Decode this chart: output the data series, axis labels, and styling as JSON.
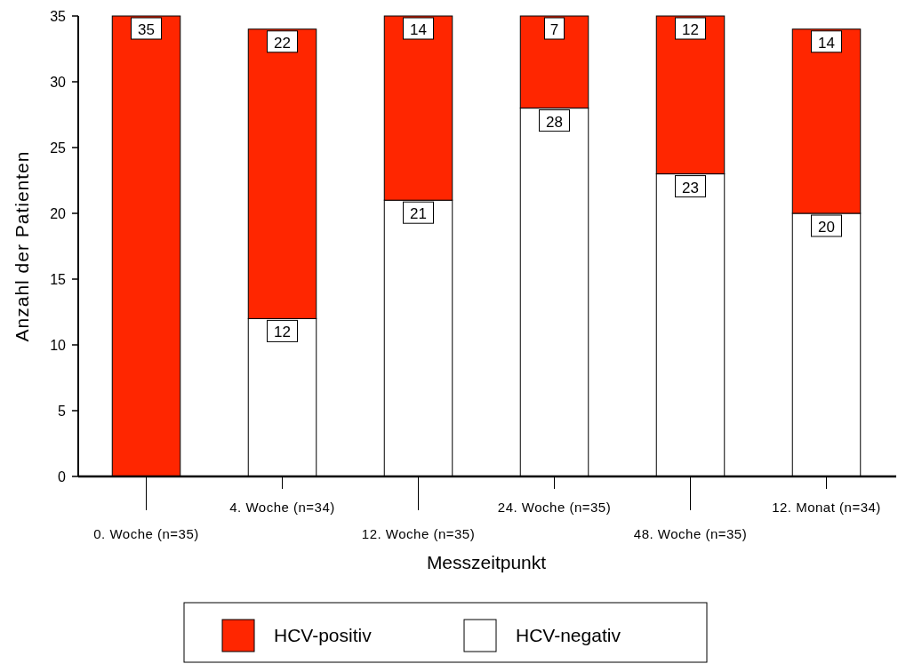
{
  "chart_data": {
    "type": "bar",
    "stacked": true,
    "xlabel": "Messzeitpunkt",
    "ylabel": "Anzahl der Patienten",
    "categories": [
      "0. Woche (n=35)",
      "4. Woche (n=34)",
      "12. Woche (n=35)",
      "24. Woche (n=35)",
      "48. Woche (n=35)",
      "12. Monat (n=34)"
    ],
    "series": [
      {
        "name": "HCV-negativ",
        "color": "#ffffff",
        "values": [
          0,
          12,
          21,
          28,
          23,
          20
        ],
        "value_labels": [
          null,
          "12",
          "21",
          "28",
          "23",
          "20"
        ]
      },
      {
        "name": "HCV-positiv",
        "color": "#ff2600",
        "values": [
          35,
          22,
          14,
          7,
          12,
          14
        ],
        "value_labels": [
          "35",
          "22",
          "14",
          "7",
          "12",
          "14"
        ]
      }
    ],
    "ylim": [
      0,
      35
    ],
    "yticks": [
      0,
      5,
      10,
      15,
      20,
      25,
      30,
      35
    ],
    "grid": false,
    "legend": "bottom"
  }
}
